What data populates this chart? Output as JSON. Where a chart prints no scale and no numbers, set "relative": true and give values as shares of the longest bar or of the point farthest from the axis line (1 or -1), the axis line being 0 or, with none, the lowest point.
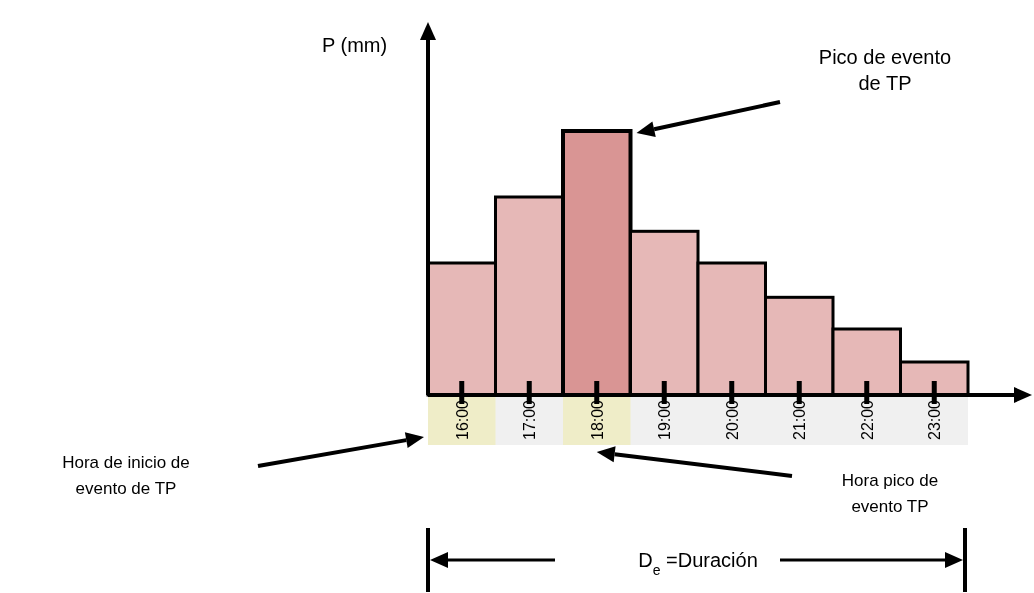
{
  "chart_data": {
    "type": "bar",
    "relative": true,
    "ylabel": "P (mm)",
    "categories": [
      "16:00",
      "17:00",
      "18:00",
      "19:00",
      "20:00",
      "21:00",
      "22:00",
      "23:00"
    ],
    "values": [
      0.5,
      0.75,
      1,
      0.62,
      0.5,
      0.37,
      0.25,
      0.125
    ],
    "colors": [
      "#e6b8b7",
      "#e6b8b7",
      "#d99594",
      "#e6b8b7",
      "#e6b8b7",
      "#e6b8b7",
      "#e6b8b7",
      "#e6b8b7"
    ],
    "annotations": [
      "Pico de evento\nde TP",
      "Hora de inicio de\nevento de TP",
      "Hora pico de\nevento TP",
      "D$_{e}$ =Duración"
    ]
  }
}
